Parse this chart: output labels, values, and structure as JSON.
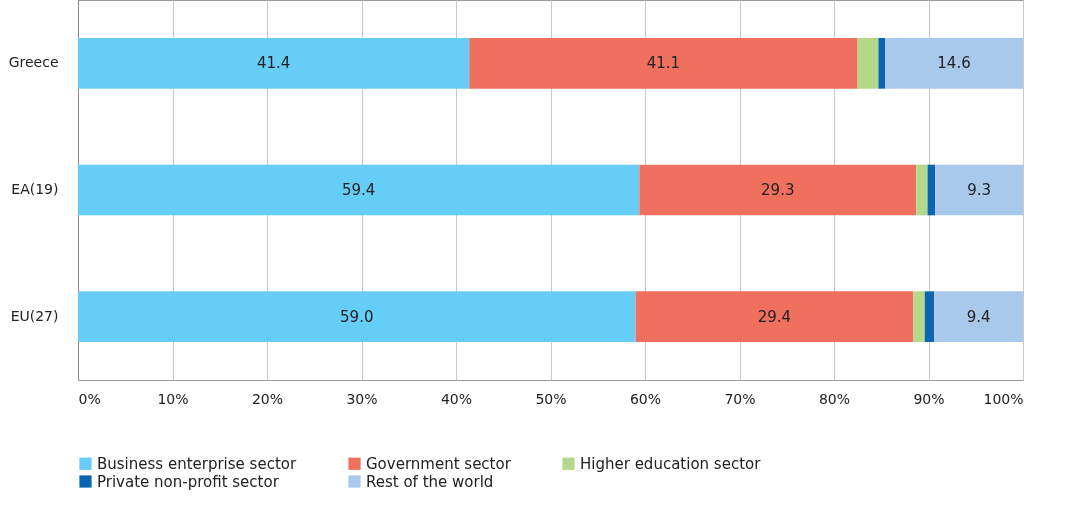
{
  "chart_data": {
    "type": "bar",
    "orientation": "horizontal",
    "stacked": true,
    "categories": [
      "Greece",
      "EA(19)",
      "EU(27)"
    ],
    "series": [
      {
        "name": "Business enterprise sector",
        "color": "#66cdf6",
        "values": [
          41.4,
          59.4,
          59.0
        ],
        "value_labels": [
          "41.4",
          "59.4",
          "59.0"
        ]
      },
      {
        "name": "Government sector",
        "color": "#f0705f",
        "values": [
          41.1,
          29.3,
          29.4
        ],
        "value_labels": [
          "41.1",
          "29.3",
          "29.4"
        ]
      },
      {
        "name": "Higher education sector",
        "color": "#b4d98a",
        "values": [
          2.2,
          1.2,
          1.2
        ],
        "value_labels": [
          null,
          null,
          null
        ]
      },
      {
        "name": "Private non-profit sector",
        "color": "#0b64b0",
        "values": [
          0.7,
          0.8,
          1.0
        ],
        "value_labels": [
          null,
          null,
          null
        ]
      },
      {
        "name": "Rest of the world",
        "color": "#a9c9ec",
        "values": [
          14.6,
          9.3,
          9.4
        ],
        "value_labels": [
          "14.6",
          "9.3",
          "9.4"
        ]
      }
    ],
    "xlim": [
      0,
      100
    ],
    "xticks": [
      {
        "value": 0,
        "label": "0%"
      },
      {
        "value": 10,
        "label": "10%"
      },
      {
        "value": 20,
        "label": "20%"
      },
      {
        "value": 30,
        "label": "30%"
      },
      {
        "value": 40,
        "label": "40%"
      },
      {
        "value": 50,
        "label": "50%"
      },
      {
        "value": 60,
        "label": "60%"
      },
      {
        "value": 70,
        "label": "70%"
      },
      {
        "value": 80,
        "label": "80%"
      },
      {
        "value": 90,
        "label": "90%"
      },
      {
        "value": 100,
        "label": "100%"
      }
    ],
    "grid": "x",
    "legend": "bottom"
  }
}
